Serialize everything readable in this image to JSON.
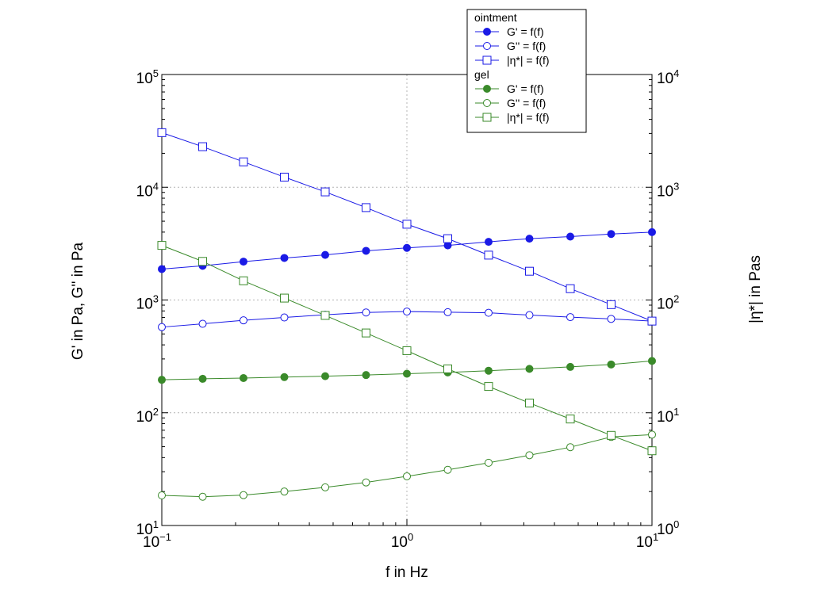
{
  "chart_data": {
    "type": "line",
    "title": "",
    "xlabel": "f in Hz",
    "ylabel_left": "G' in Pa, G'' in Pa",
    "ylabel_right": "|η*| in Pas",
    "x_scale": "log",
    "y_scale_left": "log",
    "y_scale_right": "log",
    "xlim": [
      0.1,
      10
    ],
    "ylim_left": [
      10,
      100000
    ],
    "ylim_right": [
      1,
      10000
    ],
    "x_ticks": [
      {
        "value": 0.1,
        "base": "10",
        "exp": "−1"
      },
      {
        "value": 1,
        "base": "10",
        "exp": "0"
      },
      {
        "value": 10,
        "base": "10",
        "exp": "1"
      }
    ],
    "y_ticks_left": [
      {
        "value": 10,
        "base": "10",
        "exp": "1"
      },
      {
        "value": 100,
        "base": "10",
        "exp": "2"
      },
      {
        "value": 1000,
        "base": "10",
        "exp": "3"
      },
      {
        "value": 10000,
        "base": "10",
        "exp": "4"
      },
      {
        "value": 100000,
        "base": "10",
        "exp": "5"
      }
    ],
    "y_ticks_right": [
      {
        "value": 1,
        "base": "10",
        "exp": "0"
      },
      {
        "value": 10,
        "base": "10",
        "exp": "1"
      },
      {
        "value": 100,
        "base": "10",
        "exp": "2"
      },
      {
        "value": 1000,
        "base": "10",
        "exp": "3"
      },
      {
        "value": 10000,
        "base": "10",
        "exp": "4"
      }
    ],
    "grid": true,
    "legend_placement": "top-right",
    "x": [
      0.1,
      0.1468,
      0.2154,
      0.3162,
      0.4642,
      0.6813,
      1.0,
      1.468,
      2.154,
      3.162,
      4.642,
      6.813,
      10.0
    ],
    "groups": [
      {
        "name": "ointment",
        "color": "#1a1ae6",
        "series": [
          {
            "label": "G' = f(f)",
            "marker": "filled-circle",
            "axis": "left",
            "values": [
              1880,
              2010,
              2190,
              2360,
              2510,
              2730,
              2900,
              3050,
              3280,
              3500,
              3650,
              3850,
              4000
            ]
          },
          {
            "label": "G'' = f(f)",
            "marker": "open-circle",
            "axis": "left",
            "values": [
              575,
              615,
              660,
              700,
              740,
              775,
              790,
              780,
              770,
              735,
              705,
              680,
              650
            ]
          },
          {
            "label": "|η*| = f(f)",
            "marker": "open-square",
            "axis": "right",
            "values": [
              3050,
              2290,
              1680,
              1230,
              910,
              660,
              470,
              350,
              250,
              180,
              126,
              91,
              65
            ]
          }
        ]
      },
      {
        "name": "gel",
        "color": "#3a8a2a",
        "series": [
          {
            "label": "G' = f(f)",
            "marker": "filled-circle",
            "axis": "left",
            "values": [
              196,
              200,
              203,
              207,
              211,
              216,
              222,
              228,
              236,
              245,
              255,
              268,
              288
            ]
          },
          {
            "label": "G'' = f(f)",
            "marker": "open-circle",
            "axis": "left",
            "values": [
              18.5,
              18.0,
              18.6,
              20.0,
              21.8,
              24.1,
              27.3,
              31.2,
              36.0,
              42.0,
              49.5,
              61.0,
              64.0
            ]
          },
          {
            "label": "|η*| = f(f)",
            "marker": "open-square",
            "axis": "right",
            "values": [
              305,
              220,
              148,
              104,
              73,
              51,
              35.5,
              24.5,
              17.1,
              12.2,
              8.8,
              6.3,
              4.6
            ]
          }
        ]
      }
    ]
  }
}
